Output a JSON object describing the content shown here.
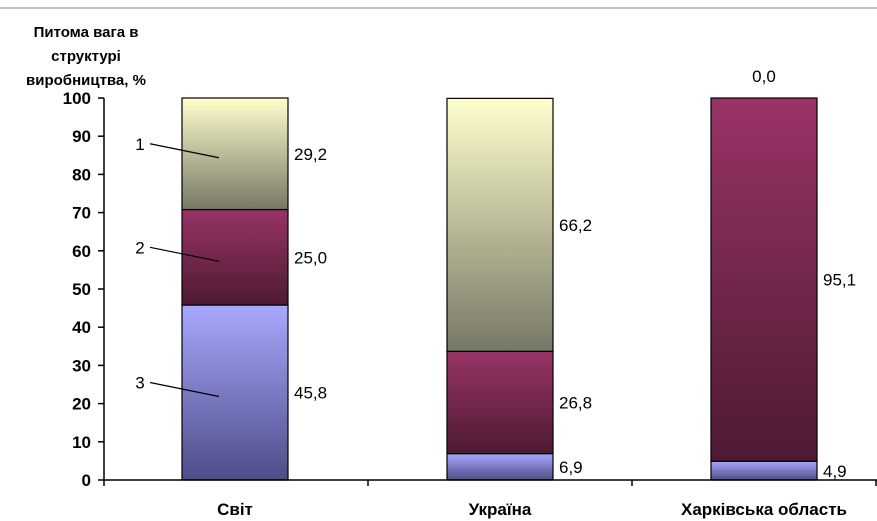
{
  "chart_data": {
    "type": "bar",
    "stacked": true,
    "ylabel_lines": [
      "Питома вага в",
      "структурі",
      "виробництва,  %"
    ],
    "ylim": [
      0,
      100
    ],
    "yticks": [
      "0",
      "10",
      "20",
      "30",
      "40",
      "50",
      "60",
      "70",
      "80",
      "90",
      "100"
    ],
    "categories": [
      "Світ",
      "Україна",
      "Харківська область"
    ],
    "series": [
      {
        "key": "s3",
        "values": [
          45.8,
          6.9,
          4.9
        ],
        "labels": [
          "45,8",
          "6,9",
          "4,9"
        ],
        "color_top": "#a8a8ff",
        "color_bottom": "#4d4d88"
      },
      {
        "key": "s2",
        "values": [
          25.0,
          26.8,
          95.1
        ],
        "labels": [
          "25,0",
          "26,8",
          "95,1"
        ],
        "color_top": "#993366",
        "color_bottom": "#4d1a33"
      },
      {
        "key": "s1",
        "values": [
          29.2,
          66.2,
          0.0
        ],
        "labels": [
          "29,2",
          "66,2",
          "0,0"
        ],
        "color_top": "#ffffcc",
        "color_bottom": "#777766"
      }
    ],
    "markers": [
      {
        "text": "1",
        "series": "s1"
      },
      {
        "text": "2",
        "series": "s2"
      },
      {
        "text": "3",
        "series": "s3"
      }
    ],
    "grid": false
  }
}
